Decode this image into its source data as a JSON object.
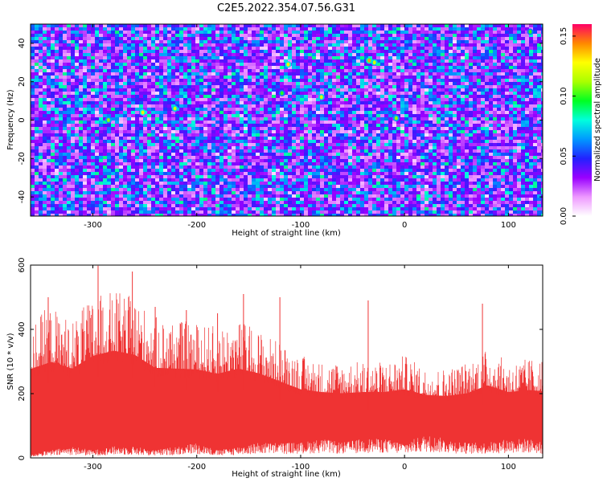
{
  "title": "C2E5.2022.354.07.56.G31",
  "chart_data": [
    {
      "type": "heatmap",
      "xlabel": "Height of straight line (km)",
      "ylabel": "Frequency (Hz)",
      "xlim": [
        -360,
        133
      ],
      "ylim": [
        -50,
        50
      ],
      "x_ticks": [
        -300,
        -200,
        -100,
        0,
        100
      ],
      "x_tick_labels": [
        "-300",
        "-200",
        "-100",
        "0",
        "100"
      ],
      "y_ticks": [
        -40,
        -20,
        0,
        20,
        40
      ],
      "y_tick_labels": [
        "-40",
        "-20",
        "0",
        "20",
        "40"
      ],
      "colorbar": {
        "label": "Normalized spectral amplitude",
        "range": [
          0,
          0.16
        ],
        "ticks": [
          0,
          0.05,
          0.1,
          0.15
        ],
        "tick_labels": [
          "0.00",
          "0.05",
          "0.10",
          "0.15"
        ],
        "colors": [
          "#ffffff",
          "#ee99ff",
          "#9900ff",
          "#2222ff",
          "#0099ff",
          "#00ffdd",
          "#00ff22",
          "#aaff00",
          "#ffff00",
          "#ff8800",
          "#ff0066"
        ]
      },
      "background_value": 0.03,
      "hot_spots": [
        {
          "x": -252,
          "y": 4,
          "value": 0.13
        },
        {
          "x": -221,
          "y": 6,
          "value": 0.12
        },
        {
          "x": -112,
          "y": 29,
          "value": 0.13
        },
        {
          "x": -80,
          "y": 12,
          "value": 0.12
        },
        {
          "x": -34,
          "y": 31,
          "value": 0.14
        },
        {
          "x": -29,
          "y": 30,
          "value": 0.12
        },
        {
          "x": -8,
          "y": 1,
          "value": 0.11
        },
        {
          "x": -285,
          "y": 0,
          "value": 0.11
        },
        {
          "x": 121,
          "y": 46,
          "value": 0.1
        },
        {
          "x": -118,
          "y": 14,
          "value": 0.1
        }
      ]
    },
    {
      "type": "area",
      "xlabel": "Height of straight line (km)",
      "ylabel": "SNR (10 * v/v)",
      "xlim": [
        -360,
        133
      ],
      "ylim": [
        0,
        600
      ],
      "x_ticks": [
        -300,
        -200,
        -100,
        0,
        100
      ],
      "x_tick_labels": [
        "-300",
        "-200",
        "-100",
        "0",
        "100"
      ],
      "y_ticks": [
        0,
        200,
        400,
        600
      ],
      "y_tick_labels": [
        "0",
        "200",
        "400",
        "600"
      ],
      "color": "#ef3333",
      "series": [
        {
          "x": [
            -360,
            -340,
            -320,
            -300,
            -280,
            -260,
            -240,
            -220,
            -200,
            -180,
            -160,
            -140,
            -120,
            -100,
            -80,
            -60,
            -40,
            -20,
            0,
            20,
            40,
            60,
            80,
            100,
            120,
            133
          ],
          "upper": [
            440,
            470,
            430,
            500,
            520,
            500,
            440,
            430,
            420,
            410,
            430,
            400,
            360,
            320,
            300,
            300,
            300,
            300,
            320,
            280,
            280,
            300,
            340,
            300,
            310,
            310
          ],
          "lower": [
            10,
            20,
            30,
            20,
            30,
            30,
            20,
            30,
            40,
            20,
            30,
            40,
            40,
            40,
            50,
            40,
            50,
            50,
            40,
            60,
            50,
            40,
            40,
            50,
            50,
            40
          ],
          "peaks": [
            {
              "x": -295,
              "y": 598
            },
            {
              "x": -262,
              "y": 580
            },
            {
              "x": -343,
              "y": 500
            },
            {
              "x": -155,
              "y": 510
            },
            {
              "x": -120,
              "y": 500
            },
            {
              "x": -35,
              "y": 490
            },
            {
              "x": 75,
              "y": 480
            },
            {
              "x": -240,
              "y": 470
            },
            {
              "x": -210,
              "y": 460
            },
            {
              "x": -180,
              "y": 450
            }
          ]
        }
      ]
    }
  ]
}
